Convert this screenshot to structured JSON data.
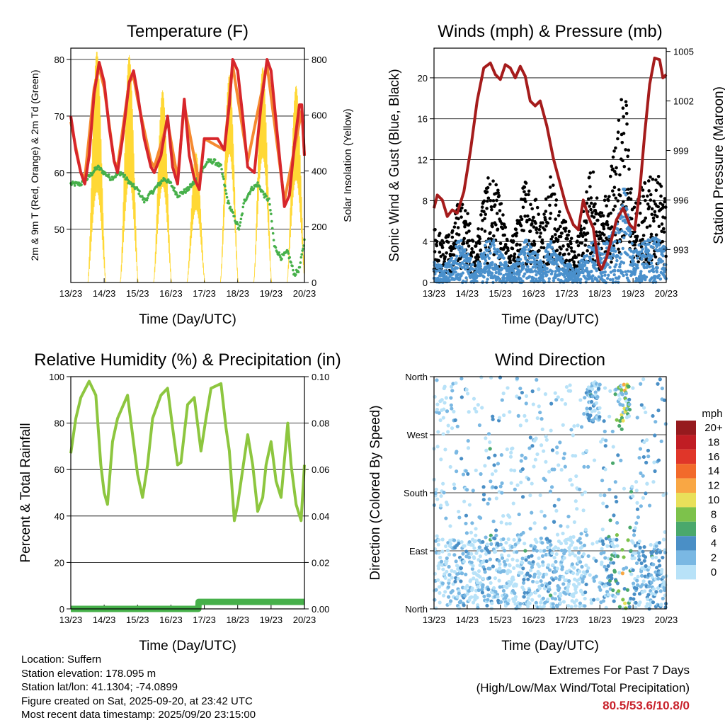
{
  "chart_data": [
    {
      "type": "line",
      "title": "Temperature (F)",
      "xlabel": "Time (Day/UTC)",
      "ylabel": "2m & 9m T (Red, Orange) & 2m Td (Green)",
      "ylabel_right": "Solar Insolation (Yellow)",
      "x_ticks": [
        "13/23",
        "14/23",
        "15/23",
        "16/23",
        "17/23",
        "18/23",
        "19/23",
        "20/23"
      ],
      "xlim": [
        0,
        7
      ],
      "ylim": [
        40.6,
        82
      ],
      "ylim_right": [
        0,
        840
      ],
      "y_ticks": [
        50,
        60,
        70,
        80
      ],
      "y_ticks_right": [
        0,
        200,
        400,
        600,
        800
      ],
      "grid": "horizontal",
      "series": [
        {
          "name": "2m T",
          "color": "#d7262b",
          "x": [
            0,
            0.15,
            0.3,
            0.42,
            0.55,
            0.7,
            0.85,
            1.0,
            1.15,
            1.3,
            1.4,
            1.55,
            1.75,
            1.88,
            2.0,
            2.2,
            2.4,
            2.5,
            2.7,
            2.9,
            3.05,
            3.2,
            3.4,
            3.55,
            3.7,
            3.85,
            4.0,
            4.2,
            4.4,
            4.6,
            4.75,
            4.85,
            5.0,
            5.15,
            5.3,
            5.5,
            5.7,
            5.88,
            6.0,
            6.2,
            6.4,
            6.55,
            6.7,
            6.85,
            6.92,
            7.0
          ],
          "values": [
            70,
            64,
            60,
            58,
            63,
            74,
            79.5,
            76,
            68,
            62,
            60,
            66,
            76,
            78,
            74,
            66,
            61,
            60,
            63,
            70,
            61,
            58,
            73,
            63,
            59,
            57,
            66,
            66,
            66,
            64,
            72,
            80,
            78,
            70,
            61,
            60,
            72,
            80,
            78,
            66,
            54,
            56,
            65,
            72,
            72,
            63
          ]
        },
        {
          "name": "9m T",
          "color": "#f58a30",
          "x": [
            0,
            0.3,
            0.42,
            0.7,
            0.85,
            1.0,
            1.3,
            1.4,
            1.75,
            1.88,
            2.0,
            2.4,
            2.5,
            2.9,
            3.2,
            3.4,
            3.85,
            4.0,
            4.6,
            4.85,
            5.3,
            5.88,
            6.4,
            6.92,
            7.0
          ],
          "values": [
            69,
            60,
            59,
            75,
            78.5,
            75,
            62,
            61,
            76,
            77,
            73,
            62,
            61,
            69,
            59,
            72,
            58,
            66,
            64,
            79,
            62,
            79,
            55,
            71,
            63
          ]
        },
        {
          "name": "2m Td",
          "color": "#46b04a",
          "x": [
            0,
            0.3,
            0.5,
            0.8,
            1.0,
            1.2,
            1.5,
            1.8,
            2.0,
            2.2,
            2.5,
            2.8,
            3.0,
            3.2,
            3.5,
            3.8,
            4.1,
            4.3,
            4.5,
            4.7,
            4.9,
            5.05,
            5.2,
            5.4,
            5.6,
            5.8,
            5.95,
            6.1,
            6.3,
            6.5,
            6.7,
            6.85,
            7.0
          ],
          "values": [
            58,
            58,
            59,
            61,
            60,
            59,
            60,
            58,
            57,
            55,
            57,
            59,
            58,
            56,
            57,
            59,
            62,
            62,
            61,
            55,
            52,
            50,
            55,
            57,
            58,
            56,
            55,
            47,
            45,
            46,
            42,
            43,
            48
          ]
        }
      ],
      "solar": {
        "name": "Solar Insolation",
        "color": "#ffd835",
        "day_peak_x": [
          0.78,
          1.75,
          2.75,
          3.75,
          4.75,
          5.75,
          6.75
        ],
        "day_peak_values": [
          830,
          820,
          700,
          480,
          780,
          800,
          720
        ]
      }
    },
    {
      "type": "scatter",
      "title": "Winds (mph) & Pressure (mb)",
      "xlabel": "Time (Day/UTC)",
      "ylabel": "Sonic Wind & Gust (Blue, Black)",
      "ylabel_right": "Station Pressure (Maroon)",
      "x_ticks": [
        "13/23",
        "14/23",
        "15/23",
        "16/23",
        "17/23",
        "18/23",
        "19/23",
        "20/23"
      ],
      "xlim": [
        0,
        7
      ],
      "ylim": [
        0,
        22.9
      ],
      "ylim_right": [
        991,
        1005.2
      ],
      "y_ticks": [
        0,
        4,
        8,
        12,
        16,
        20
      ],
      "y_ticks_right": [
        993,
        996,
        999,
        1002,
        1005
      ],
      "grid": "horizontal",
      "pressure": {
        "name": "Station Pressure",
        "color": "#a51c1c",
        "x": [
          0,
          0.1,
          0.25,
          0.4,
          0.55,
          0.7,
          0.9,
          1.1,
          1.3,
          1.5,
          1.7,
          1.85,
          2.0,
          2.15,
          2.3,
          2.45,
          2.6,
          2.75,
          2.9,
          3.05,
          3.2,
          3.4,
          3.6,
          3.8,
          4.0,
          4.2,
          4.35,
          4.5,
          4.65,
          4.8,
          4.95,
          5.05,
          5.2,
          5.35,
          5.5,
          5.7,
          5.9,
          6.05,
          6.2,
          6.35,
          6.5,
          6.65,
          6.8,
          6.9,
          7.0
        ],
        "values": [
          995.5,
          996.3,
          996,
          995,
          995.4,
          995.2,
          996.5,
          999,
          1002,
          1004,
          1004.3,
          1003.6,
          1003.3,
          1004.2,
          1004,
          1003.4,
          1004.1,
          1003.5,
          1002,
          1001.7,
          1002,
          1000.5,
          998.5,
          997,
          995.5,
          994.5,
          994.2,
          996,
          995,
          994.3,
          992.2,
          991.8,
          992.5,
          993.6,
          994.8,
          995.5,
          994.5,
          994.2,
          996.5,
          1000,
          1003,
          1004.6,
          1004.5,
          1003.4,
          1003.6
        ]
      },
      "gust_profile": {
        "name": "Gust (Black)",
        "color": "#000000",
        "x": [
          0,
          0.25,
          0.5,
          0.75,
          1.0,
          1.25,
          1.5,
          1.75,
          2.0,
          2.25,
          2.5,
          2.75,
          3.0,
          3.25,
          3.5,
          3.75,
          4.0,
          4.25,
          4.5,
          4.75,
          5.0,
          5.25,
          5.5,
          5.75,
          6.0,
          6.25,
          6.5,
          6.75,
          7.0
        ],
        "values": [
          5,
          4,
          4,
          7,
          6,
          3,
          8,
          9,
          7,
          3,
          5,
          9,
          8,
          5,
          10,
          6,
          5,
          3,
          6,
          10,
          6,
          8,
          13,
          17,
          6,
          8,
          9,
          9,
          7
        ]
      },
      "speed_profile": {
        "name": "Wind (Blue)",
        "color": "#4a90cc",
        "x": [
          0,
          0.25,
          0.5,
          0.75,
          1.0,
          1.25,
          1.5,
          1.75,
          2.0,
          2.25,
          2.5,
          2.75,
          3.0,
          3.25,
          3.5,
          3.75,
          4.0,
          4.25,
          4.5,
          4.75,
          5.0,
          5.25,
          5.5,
          5.75,
          6.0,
          6.25,
          6.5,
          6.75,
          7.0
        ],
        "values": [
          2,
          1.5,
          2,
          4,
          3,
          1,
          3.5,
          4,
          3,
          1.2,
          2,
          4,
          3,
          2,
          4,
          2.5,
          2,
          1,
          2.5,
          4,
          3,
          4,
          5,
          9,
          3,
          3.5,
          4,
          4,
          3
        ]
      }
    },
    {
      "type": "line",
      "title": "Relative Humidity (%) & Precipitation (in)",
      "xlabel": "Time (Day/UTC)",
      "ylabel": "Percent & Total Rainfall",
      "x_ticks": [
        "13/23",
        "14/23",
        "15/23",
        "16/23",
        "17/23",
        "18/23",
        "19/23",
        "20/23"
      ],
      "xlim": [
        0,
        7
      ],
      "ylim": [
        0,
        100
      ],
      "ylim_right": [
        0,
        0.1
      ],
      "y_ticks": [
        0,
        20,
        40,
        60,
        80,
        100
      ],
      "y_ticks_right": [
        "0.00",
        "0.02",
        "0.04",
        "0.06",
        "0.08",
        "0.10"
      ],
      "grid": "horizontal",
      "series": [
        {
          "name": "Relative Humidity",
          "color": "#8dc63f",
          "x": [
            0,
            0.15,
            0.3,
            0.55,
            0.75,
            0.9,
            1.0,
            1.1,
            1.25,
            1.4,
            1.7,
            1.85,
            2.0,
            2.15,
            2.3,
            2.45,
            2.7,
            2.9,
            3.05,
            3.2,
            3.3,
            3.5,
            3.7,
            3.9,
            4.05,
            4.2,
            4.5,
            4.65,
            4.75,
            4.9,
            5.0,
            5.1,
            5.3,
            5.45,
            5.6,
            5.75,
            5.85,
            6.0,
            6.15,
            6.3,
            6.5,
            6.6,
            6.75,
            6.9,
            7.0
          ],
          "values": [
            67,
            82,
            91,
            98,
            92,
            62,
            50,
            45,
            72,
            82,
            92,
            75,
            58,
            48,
            62,
            82,
            92,
            95,
            78,
            62,
            63,
            88,
            91,
            68,
            82,
            95,
            97,
            78,
            68,
            38,
            45,
            55,
            75,
            62,
            42,
            48,
            62,
            72,
            55,
            48,
            80,
            62,
            45,
            38,
            62
          ]
        },
        {
          "name": "Total Precipitation",
          "color": "#46b04a",
          "axis": "right",
          "x": [
            0,
            3.82,
            3.83,
            7.0
          ],
          "values": [
            0,
            0,
            0.003,
            0.003
          ]
        }
      ]
    },
    {
      "type": "scatter",
      "title": "Wind Direction",
      "xlabel": "Time (Day/UTC)",
      "ylabel": "Direction (Colored By Speed)",
      "x_ticks": [
        "13/23",
        "14/23",
        "15/23",
        "16/23",
        "17/23",
        "18/23",
        "19/23",
        "20/23"
      ],
      "xlim": [
        0,
        7
      ],
      "ylim": [
        0,
        360
      ],
      "y_ticks": [
        "North",
        "East",
        "South",
        "West",
        "North"
      ],
      "grid": "horizontal",
      "colorbar": {
        "title": "mph",
        "labels": [
          "20+",
          "18",
          "16",
          "14",
          "12",
          "10",
          "8",
          "6",
          "4",
          "2",
          "0"
        ],
        "colors": [
          "#961a1e",
          "#c01d24",
          "#e03629",
          "#f26a2b",
          "#f9a744",
          "#e9e05a",
          "#7dc24b",
          "#4aa86c",
          "#4a8fc6",
          "#7ab8e3",
          "#b8e2f8"
        ]
      }
    }
  ],
  "info": {
    "location": "Location: Suffern",
    "elevation": "Station elevation: 178.095 m",
    "latlon": "Station lat/lon: 41.1304; -74.0899",
    "created": "Figure created on Sat, 2025-09-20, at 23:42 UTC",
    "timestamp": "Most recent data timestamp: 2025/09/20 23:15:00"
  },
  "extremes": {
    "title": "Extremes For Past 7 Days",
    "subtitle": "(High/Low/Max Wind/Total Precipitation)",
    "values": "80.5/53.6/10.8/0"
  }
}
